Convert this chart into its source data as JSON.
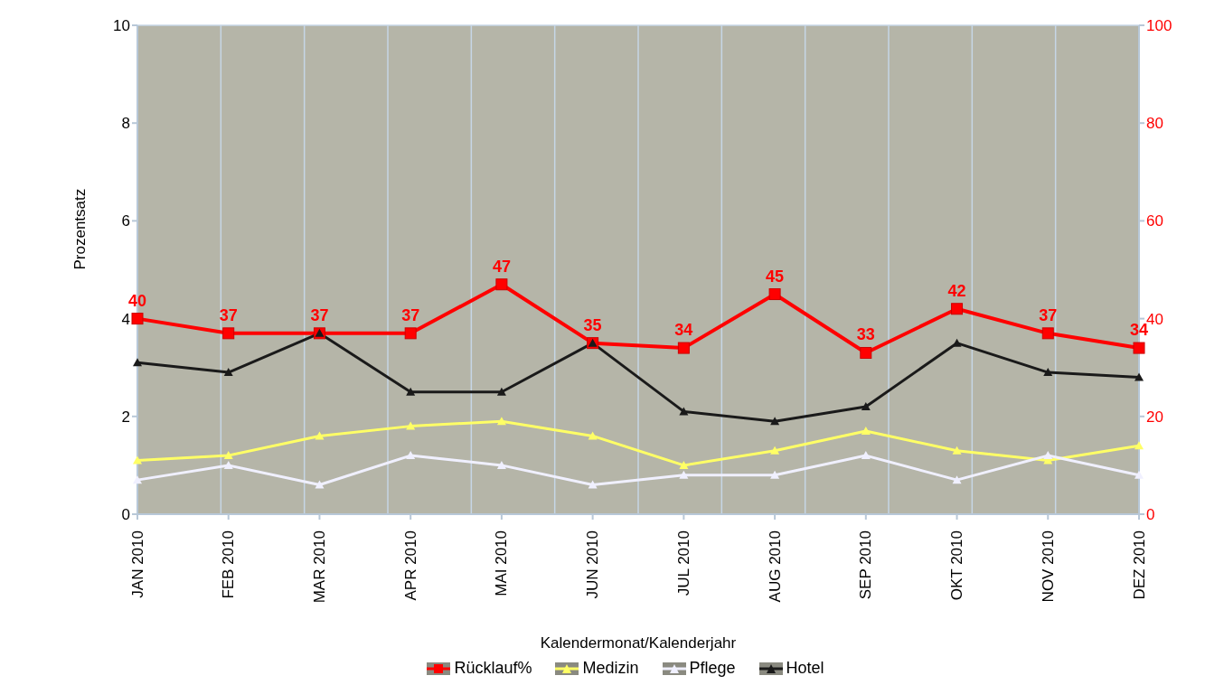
{
  "chart_data": {
    "type": "line",
    "xlabel": "Kalendermonat/Kalenderjahr",
    "ylabel": "Prozentsatz",
    "categories": [
      "JAN 2010",
      "FEB 2010",
      "MAR 2010",
      "APR 2010",
      "MAI 2010",
      "JUN 2010",
      "JUL 2010",
      "AUG 2010",
      "SEP 2010",
      "OKT 2010",
      "NOV 2010",
      "DEZ 2010"
    ],
    "series": [
      {
        "name": "Rücklauf%",
        "color": "#ff0000",
        "axis": "y2",
        "marker": "square",
        "values": [
          40,
          37,
          37,
          37,
          47,
          35,
          34,
          45,
          33,
          42,
          37,
          34
        ],
        "value_labels": [
          "40",
          "37",
          "37",
          "37",
          "47",
          "35",
          "34",
          "45",
          "33",
          "42",
          "37",
          "34"
        ]
      },
      {
        "name": "Medizin",
        "color": "#ffff66",
        "marker": "triangle",
        "values": [
          1.1,
          1.2,
          1.6,
          1.8,
          1.9,
          1.6,
          1.0,
          1.3,
          1.7,
          1.3,
          1.1,
          1.4
        ]
      },
      {
        "name": "Pflege",
        "color": "#f0f0ff",
        "marker": "triangle",
        "values": [
          0.7,
          1.0,
          0.6,
          1.2,
          1.0,
          0.6,
          0.8,
          0.8,
          1.2,
          0.7,
          1.2,
          0.8
        ]
      },
      {
        "name": "Hotel",
        "color": "#1a1a1a",
        "marker": "triangle",
        "values": [
          3.1,
          2.9,
          3.7,
          2.5,
          2.5,
          3.5,
          2.1,
          1.9,
          2.2,
          3.5,
          2.9,
          2.8
        ]
      }
    ],
    "ylim": [
      0,
      10
    ],
    "yticks": [
      0,
      2,
      4,
      6,
      8,
      10
    ],
    "y2lim": [
      0,
      100
    ],
    "y2ticks": [
      0,
      20,
      40,
      60,
      80,
      100
    ],
    "grid": true,
    "legend": "bottom"
  }
}
